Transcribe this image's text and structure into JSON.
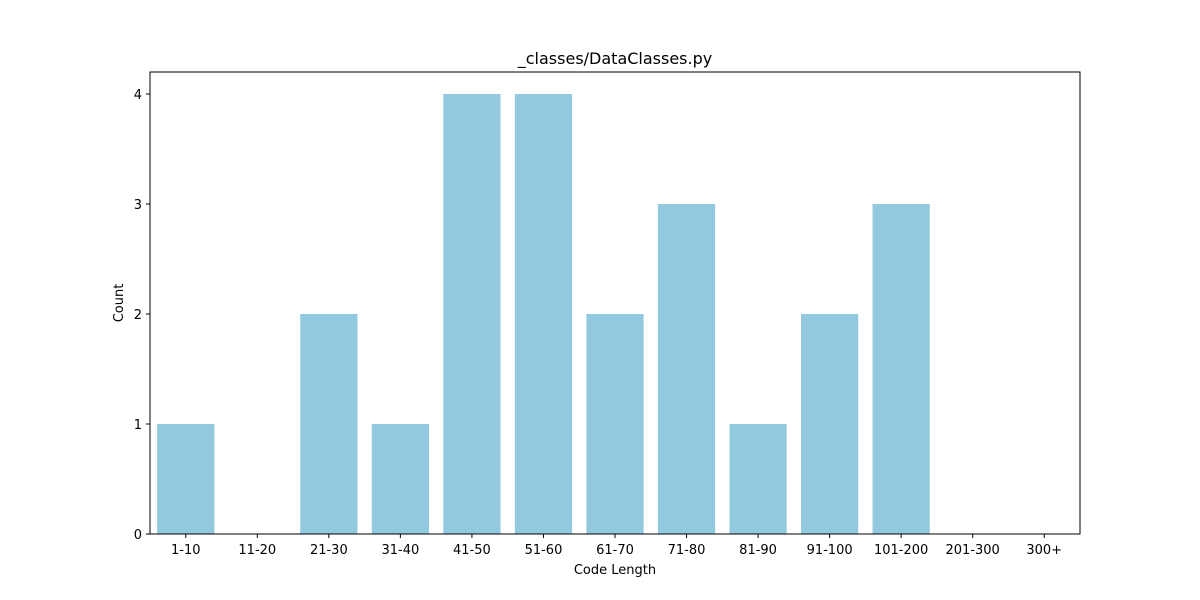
{
  "chart_data": {
    "type": "bar",
    "title": "_classes/DataClasses.py",
    "xlabel": "Code Length",
    "ylabel": "Count",
    "categories": [
      "1-10",
      "11-20",
      "21-30",
      "31-40",
      "41-50",
      "51-60",
      "61-70",
      "71-80",
      "81-90",
      "91-100",
      "101-200",
      "201-300",
      "300+"
    ],
    "values": [
      1,
      0,
      2,
      1,
      4,
      4,
      2,
      3,
      1,
      2,
      3,
      0,
      0
    ],
    "ylim": [
      0,
      4.2
    ],
    "yticks": [
      0,
      1,
      2,
      3,
      4
    ],
    "grid": false,
    "legend": "none",
    "bar_color": "#92c9df"
  }
}
